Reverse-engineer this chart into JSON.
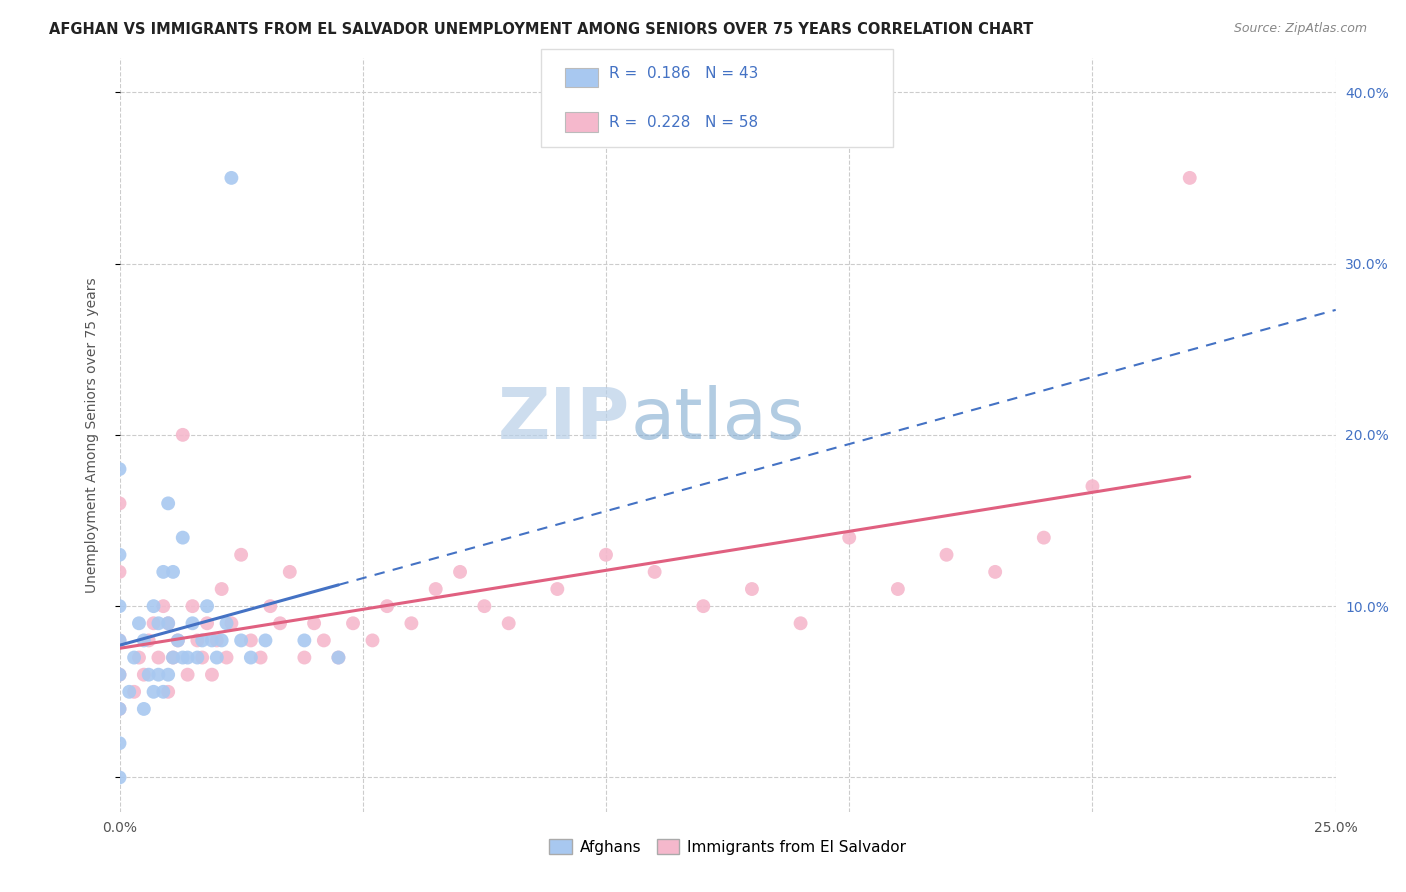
{
  "title": "AFGHAN VS IMMIGRANTS FROM EL SALVADOR UNEMPLOYMENT AMONG SENIORS OVER 75 YEARS CORRELATION CHART",
  "source": "Source: ZipAtlas.com",
  "ylabel": "Unemployment Among Seniors over 75 years",
  "xlim": [
    0.0,
    0.25
  ],
  "ylim": [
    -0.02,
    0.42
  ],
  "xticks": [
    0.0,
    0.05,
    0.1,
    0.15,
    0.2,
    0.25
  ],
  "yticks": [
    0.0,
    0.1,
    0.2,
    0.3,
    0.4
  ],
  "color_afghan": "#a8c8f0",
  "color_salvador": "#f5b8cc",
  "line_color_afghan": "#4472c4",
  "line_color_salvador": "#e06080",
  "watermark_zip": "#c8d8e8",
  "watermark_atlas": "#90b8d8",
  "background_color": "#ffffff",
  "afghans_x": [
    0.0,
    0.0,
    0.0,
    0.0,
    0.0,
    0.0,
    0.0,
    0.0,
    0.002,
    0.003,
    0.004,
    0.005,
    0.005,
    0.006,
    0.007,
    0.007,
    0.008,
    0.008,
    0.009,
    0.009,
    0.01,
    0.01,
    0.01,
    0.011,
    0.011,
    0.012,
    0.013,
    0.013,
    0.014,
    0.015,
    0.016,
    0.017,
    0.018,
    0.019,
    0.02,
    0.021,
    0.022,
    0.023,
    0.025,
    0.027,
    0.03,
    0.038,
    0.045
  ],
  "afghans_y": [
    0.0,
    0.02,
    0.04,
    0.06,
    0.08,
    0.1,
    0.13,
    0.18,
    0.05,
    0.07,
    0.09,
    0.04,
    0.08,
    0.06,
    0.05,
    0.1,
    0.06,
    0.09,
    0.05,
    0.12,
    0.06,
    0.09,
    0.16,
    0.07,
    0.12,
    0.08,
    0.07,
    0.14,
    0.07,
    0.09,
    0.07,
    0.08,
    0.1,
    0.08,
    0.07,
    0.08,
    0.09,
    0.35,
    0.08,
    0.07,
    0.08,
    0.08,
    0.07
  ],
  "salvador_x": [
    0.0,
    0.0,
    0.0,
    0.0,
    0.0,
    0.003,
    0.004,
    0.005,
    0.006,
    0.007,
    0.008,
    0.009,
    0.01,
    0.01,
    0.011,
    0.012,
    0.013,
    0.014,
    0.015,
    0.016,
    0.017,
    0.018,
    0.019,
    0.02,
    0.021,
    0.022,
    0.023,
    0.025,
    0.027,
    0.029,
    0.031,
    0.033,
    0.035,
    0.038,
    0.04,
    0.042,
    0.045,
    0.048,
    0.052,
    0.055,
    0.06,
    0.065,
    0.07,
    0.075,
    0.08,
    0.09,
    0.1,
    0.11,
    0.12,
    0.13,
    0.14,
    0.15,
    0.16,
    0.17,
    0.18,
    0.19,
    0.2,
    0.22
  ],
  "salvador_y": [
    0.04,
    0.06,
    0.08,
    0.12,
    0.16,
    0.05,
    0.07,
    0.06,
    0.08,
    0.09,
    0.07,
    0.1,
    0.05,
    0.09,
    0.07,
    0.08,
    0.2,
    0.06,
    0.1,
    0.08,
    0.07,
    0.09,
    0.06,
    0.08,
    0.11,
    0.07,
    0.09,
    0.13,
    0.08,
    0.07,
    0.1,
    0.09,
    0.12,
    0.07,
    0.09,
    0.08,
    0.07,
    0.09,
    0.08,
    0.1,
    0.09,
    0.11,
    0.12,
    0.1,
    0.09,
    0.11,
    0.13,
    0.12,
    0.1,
    0.11,
    0.09,
    0.14,
    0.11,
    0.13,
    0.12,
    0.14,
    0.17,
    0.35
  ]
}
